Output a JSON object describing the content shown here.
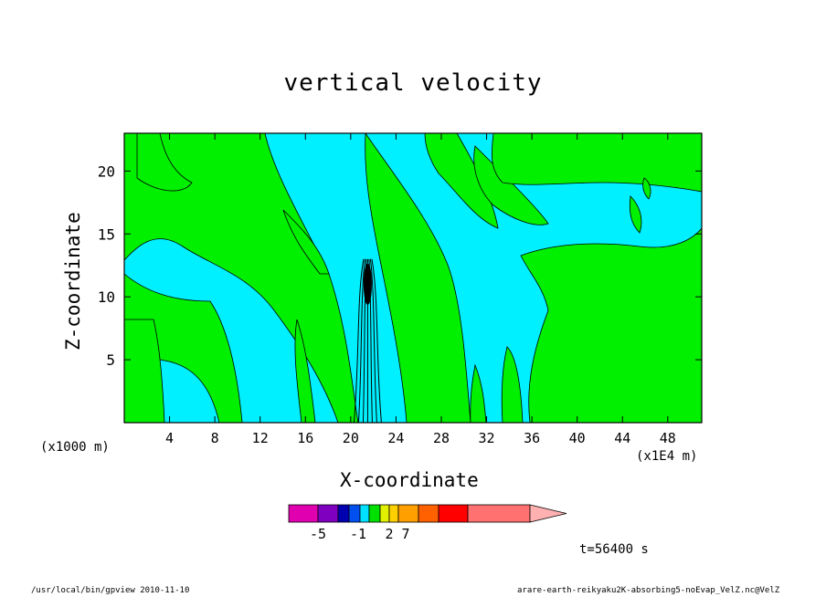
{
  "chart_data": {
    "type": "heatmap",
    "title": "vertical velocity",
    "xlabel": "X-coordinate",
    "ylabel": "Z-coordinate",
    "x_unit_label": "(x1000 m)",
    "x_scale_label": "(x1E4 m)",
    "x_ticks": [
      "4",
      "8",
      "12",
      "16",
      "20",
      "24",
      "28",
      "32",
      "36",
      "40",
      "44",
      "48"
    ],
    "y_ticks": [
      "5",
      "10",
      "15",
      "20"
    ],
    "xlim": [
      0,
      51
    ],
    "ylim": [
      0,
      23
    ],
    "colorbar": {
      "labels": [
        "-5",
        "-1",
        "2",
        "7"
      ],
      "colors": [
        "#e000b0",
        "#8000c0",
        "#0000b0",
        "#0050f0",
        "#00e0ff",
        "#00e000",
        "#e0f000",
        "#ffd000",
        "#ffa000",
        "#ff6000",
        "#ff0000",
        "#ff7070",
        "#ffb0b0"
      ]
    },
    "contour_fill_colors": {
      "background": "#00f0ff",
      "positive": "#00f000"
    },
    "time_label": "t=56400 s"
  },
  "footer": {
    "left": "/usr/local/bin/gpview  2010-11-10",
    "right": "arare-earth-reikyaku2K-absorbing5-noEvap_VelZ.nc@VelZ"
  }
}
